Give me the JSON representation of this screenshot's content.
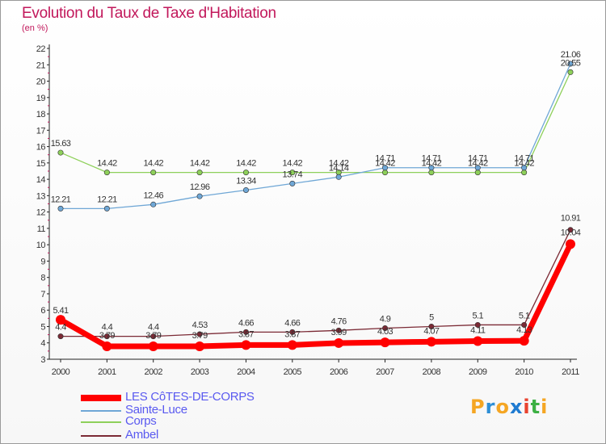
{
  "title": "Evolution du Taux de Taxe d'Habitation",
  "unit_label": "(en %)",
  "logo": {
    "letters": [
      "P",
      "r",
      "o",
      "x",
      "i",
      "t",
      "i"
    ],
    "colors": [
      "#f5a623",
      "#2e8fd6",
      "#f5a623",
      "#1f7bd1",
      "#e8432f",
      "#3cb043",
      "#f5a623"
    ]
  },
  "chart_data": {
    "type": "line",
    "title": "Evolution du Taux de Taxe d'Habitation",
    "ylabel": "(en %)",
    "xlabel": "",
    "x": [
      "2000",
      "2001",
      "2002",
      "2003",
      "2004",
      "2005",
      "2006",
      "2007",
      "2008",
      "2009",
      "2010",
      "2011"
    ],
    "ylim": [
      3,
      22
    ],
    "yticks": [
      3,
      4,
      5,
      6,
      7,
      8,
      9,
      10,
      11,
      12,
      13,
      14,
      15,
      16,
      17,
      18,
      19,
      20,
      21,
      22
    ],
    "grid": false,
    "legend_position": "bottom-left",
    "series": [
      {
        "name": "LES CôTES-DE-CORPS",
        "color": "#ff0000",
        "width": 7,
        "values": [
          5.41,
          3.79,
          3.79,
          3.79,
          3.87,
          3.87,
          3.99,
          4.03,
          4.07,
          4.11,
          4.13,
          10.04
        ],
        "labels": [
          "5.41",
          "3.79",
          "3.79",
          "3.79",
          "3.87",
          "3.87",
          "3.99",
          "4.03",
          "4.07",
          "4.11",
          "4.13",
          "10.04"
        ]
      },
      {
        "name": "Sainte-Luce",
        "color": "#6fa7d6",
        "width": 1.3,
        "values": [
          12.21,
          12.21,
          12.46,
          12.96,
          13.34,
          13.74,
          14.14,
          14.71,
          14.71,
          14.71,
          14.71,
          21.06
        ],
        "labels": [
          "12.21",
          "12.21",
          "12.46",
          "12.96",
          "13.34",
          "13.74",
          "14.14",
          "14.71",
          "14.71",
          "14.71",
          "14.71",
          "21.06"
        ]
      },
      {
        "name": "Corps",
        "color": "#8ed05a",
        "width": 1.3,
        "values": [
          15.63,
          14.42,
          14.42,
          14.42,
          14.42,
          14.42,
          14.42,
          14.42,
          14.42,
          14.42,
          14.42,
          20.55
        ],
        "labels": [
          "15.63",
          "14.42",
          "14.42",
          "14.42",
          "14.42",
          "14.42",
          "14.42",
          "14.42",
          "14.42",
          "14.42",
          "14.42",
          "20.55"
        ]
      },
      {
        "name": "Ambel",
        "color": "#7b2a35",
        "width": 1.3,
        "values": [
          4.4,
          4.4,
          4.4,
          4.53,
          4.66,
          4.66,
          4.76,
          4.9,
          5,
          5.1,
          5.1,
          10.91
        ],
        "labels": [
          "4.4",
          "4.4",
          "4.4",
          "4.53",
          "4.66",
          "4.66",
          "4.76",
          "4.9",
          "5",
          "5.1",
          "5.1",
          "10.91"
        ]
      }
    ]
  }
}
